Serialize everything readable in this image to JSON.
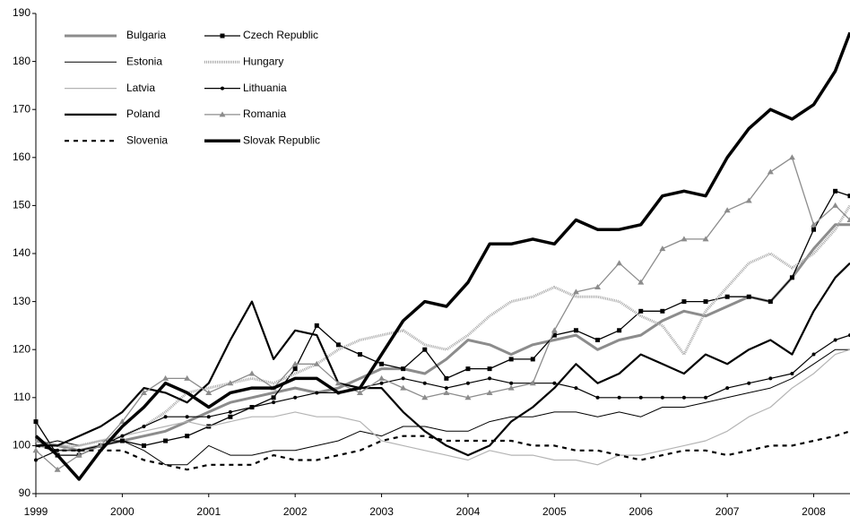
{
  "chart_data": {
    "type": "line",
    "x": [
      1999,
      1999.25,
      1999.5,
      1999.75,
      2000,
      2000.25,
      2000.5,
      2000.75,
      2001,
      2001.25,
      2001.5,
      2001.75,
      2002,
      2002.25,
      2002.5,
      2002.75,
      2003,
      2003.25,
      2003.5,
      2003.75,
      2004,
      2004.25,
      2004.5,
      2004.75,
      2005,
      2005.25,
      2005.5,
      2005.75,
      2006,
      2006.25,
      2006.5,
      2006.75,
      2007,
      2007.25,
      2007.5,
      2007.75,
      2008,
      2008.25,
      2008.42
    ],
    "xlim": [
      1999,
      2008.42
    ],
    "xticks": [
      1999,
      2000,
      2001,
      2002,
      2003,
      2004,
      2005,
      2006,
      2007,
      2008
    ],
    "ylim": [
      90,
      190
    ],
    "yticks": [
      90,
      100,
      110,
      120,
      130,
      140,
      150,
      160,
      170,
      180,
      190
    ],
    "series": [
      {
        "name": "Bulgaria",
        "color": "#8c8c8c",
        "width": 3,
        "dash": "",
        "marker": "",
        "values": [
          101,
          100,
          99,
          100,
          101,
          102,
          103,
          105,
          107,
          109,
          110,
          111,
          112,
          111,
          112,
          114,
          116,
          116,
          115,
          118,
          122,
          121,
          119,
          121,
          122,
          123,
          120,
          122,
          123,
          126,
          128,
          127,
          129,
          131,
          130,
          135,
          141,
          146,
          146
        ]
      },
      {
        "name": "Czech Republic",
        "color": "#000000",
        "width": 1.3,
        "dash": "",
        "marker": "square",
        "values": [
          105,
          98,
          98,
          100,
          101,
          100,
          101,
          102,
          104,
          106,
          108,
          110,
          116,
          125,
          121,
          119,
          117,
          116,
          120,
          114,
          116,
          116,
          118,
          118,
          123,
          124,
          122,
          124,
          128,
          128,
          130,
          130,
          131,
          131,
          130,
          135,
          145,
          153,
          152
        ]
      },
      {
        "name": "Estonia",
        "color": "#000000",
        "width": 1,
        "dash": "",
        "marker": "",
        "values": [
          100,
          101,
          100,
          101,
          101,
          99,
          96,
          96,
          100,
          98,
          98,
          99,
          99,
          100,
          101,
          103,
          102,
          104,
          104,
          103,
          103,
          105,
          106,
          106,
          107,
          107,
          106,
          107,
          106,
          108,
          108,
          109,
          110,
          111,
          112,
          114,
          117,
          120,
          120
        ]
      },
      {
        "name": "Hungary",
        "color": "#a8a8a8",
        "width": 3,
        "dash": "1,1",
        "marker": "",
        "values": [
          101,
          100,
          100,
          101,
          102,
          104,
          107,
          111,
          112,
          113,
          114,
          113,
          115,
          117,
          120,
          122,
          123,
          124,
          121,
          120,
          123,
          127,
          130,
          131,
          133,
          131,
          131,
          130,
          127,
          125,
          119,
          128,
          133,
          138,
          140,
          137,
          140,
          145,
          150
        ]
      },
      {
        "name": "Latvia",
        "color": "#b4b4b4",
        "width": 1.2,
        "dash": "",
        "marker": "",
        "values": [
          100,
          99,
          100,
          101,
          102,
          103,
          104,
          105,
          104,
          105,
          106,
          106,
          107,
          106,
          106,
          105,
          101,
          100,
          99,
          98,
          97,
          99,
          98,
          98,
          97,
          97,
          96,
          98,
          98,
          99,
          100,
          101,
          103,
          106,
          108,
          112,
          115,
          119,
          120
        ]
      },
      {
        "name": "Lithuania",
        "color": "#000000",
        "width": 1.2,
        "dash": "",
        "marker": "dot",
        "values": [
          97,
          99,
          99,
          100,
          102,
          104,
          106,
          106,
          106,
          107,
          108,
          109,
          110,
          111,
          111,
          112,
          113,
          114,
          113,
          112,
          113,
          114,
          113,
          113,
          113,
          112,
          110,
          110,
          110,
          110,
          110,
          110,
          112,
          113,
          114,
          115,
          119,
          122,
          123
        ]
      },
      {
        "name": "Poland",
        "color": "#000000",
        "width": 2.2,
        "dash": "",
        "marker": "",
        "values": [
          100,
          100,
          102,
          104,
          107,
          112,
          111,
          109,
          113,
          122,
          130,
          118,
          124,
          123,
          113,
          112,
          112,
          107,
          103,
          100,
          98,
          100,
          105,
          108,
          112,
          117,
          113,
          115,
          119,
          117,
          115,
          119,
          117,
          120,
          122,
          119,
          128,
          135,
          138
        ]
      },
      {
        "name": "Romania",
        "color": "#8c8c8c",
        "width": 1.3,
        "dash": "",
        "marker": "triangle",
        "values": [
          99,
          95,
          98,
          100,
          105,
          111,
          114,
          114,
          111,
          113,
          115,
          112,
          117,
          117,
          113,
          111,
          114,
          112,
          110,
          111,
          110,
          111,
          112,
          113,
          124,
          132,
          133,
          138,
          134,
          141,
          143,
          143,
          149,
          151,
          157,
          160,
          146,
          150,
          147
        ]
      },
      {
        "name": "Slovenia",
        "color": "#000000",
        "width": 2.2,
        "dash": "5,5",
        "marker": "",
        "values": [
          100,
          99,
          99,
          99,
          99,
          97,
          96,
          95,
          96,
          96,
          96,
          98,
          97,
          97,
          98,
          99,
          101,
          102,
          102,
          101,
          101,
          101,
          101,
          100,
          100,
          99,
          99,
          98,
          97,
          98,
          99,
          99,
          98,
          99,
          100,
          100,
          101,
          102,
          103
        ]
      },
      {
        "name": "Slovak Republic",
        "color": "#000000",
        "width": 3.5,
        "dash": "",
        "marker": "",
        "values": [
          102,
          98,
          93,
          99,
          104,
          108,
          113,
          111,
          108,
          111,
          112,
          112,
          114,
          114,
          111,
          112,
          119,
          126,
          130,
          129,
          134,
          142,
          142,
          143,
          142,
          147,
          145,
          145,
          146,
          152,
          153,
          152,
          160,
          166,
          170,
          168,
          171,
          178,
          186
        ]
      }
    ]
  }
}
